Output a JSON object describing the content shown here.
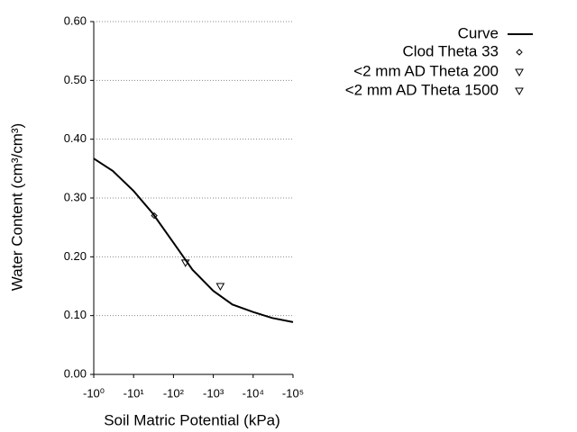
{
  "chart_data": {
    "type": "line",
    "x_label": "Soil Matric Potential (kPa)",
    "y_label": "Water Content (cm³/cm³)",
    "log_x": true,
    "grid": true,
    "xlim": [
      1,
      100000
    ],
    "xticks": [
      {
        "value": 1,
        "label": "-10⁰"
      },
      {
        "value": 10,
        "label": "-10¹"
      },
      {
        "value": 100,
        "label": "-10²"
      },
      {
        "value": 1000,
        "label": "-10³"
      },
      {
        "value": 10000,
        "label": "-10⁴"
      },
      {
        "value": 100000,
        "label": "-10⁵"
      }
    ],
    "ylim": [
      0,
      0.6
    ],
    "yticks": [
      {
        "value": 0,
        "label": "0.00"
      },
      {
        "value": 0.1,
        "label": "0.10"
      },
      {
        "value": 0.2,
        "label": "0.20"
      },
      {
        "value": 0.3,
        "label": "0.30"
      },
      {
        "value": 0.4,
        "label": "0.40"
      },
      {
        "value": 0.5,
        "label": "0.50"
      },
      {
        "value": 0.6,
        "label": "0.60"
      }
    ],
    "series": [
      {
        "name": "Curve",
        "color": "#000000",
        "marker": "line",
        "x": [
          1,
          3,
          10,
          30,
          100,
          300,
          1000,
          3000,
          10000,
          30000,
          100000
        ],
        "values": [
          0.367,
          0.346,
          0.312,
          0.274,
          0.224,
          0.178,
          0.142,
          0.119,
          0.106,
          0.096,
          0.089
        ]
      },
      {
        "name": "Clod Theta 33",
        "color": "#000000",
        "marker": "diamond",
        "x": [
          33
        ],
        "values": [
          0.27
        ]
      },
      {
        "name": "<2 mm AD Theta 200",
        "color": "#000000",
        "marker": "triangle-down",
        "x": [
          200
        ],
        "values": [
          0.19
        ]
      },
      {
        "name": "<2 mm AD Theta 1500",
        "color": "#000000",
        "marker": "triangle-down",
        "x": [
          1500
        ],
        "values": [
          0.15
        ]
      }
    ]
  }
}
